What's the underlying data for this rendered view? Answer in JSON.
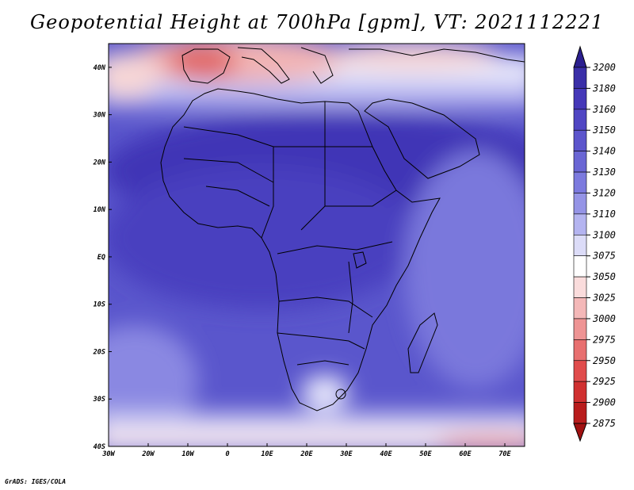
{
  "title": "Geopotential Height at 700hPa [gpm], VT: 2021112221",
  "credit": "GrADS: IGES/COLA",
  "map": {
    "lon_range": [
      -30,
      75
    ],
    "lat_range": [
      -40,
      45
    ],
    "lon_ticks": [
      {
        "value": -30,
        "label": "30W"
      },
      {
        "value": -20,
        "label": "20W"
      },
      {
        "value": -10,
        "label": "10W"
      },
      {
        "value": 0,
        "label": "0"
      },
      {
        "value": 10,
        "label": "10E"
      },
      {
        "value": 20,
        "label": "20E"
      },
      {
        "value": 30,
        "label": "30E"
      },
      {
        "value": 40,
        "label": "40E"
      },
      {
        "value": 50,
        "label": "50E"
      },
      {
        "value": 60,
        "label": "60E"
      },
      {
        "value": 70,
        "label": "70E"
      }
    ],
    "lat_ticks": [
      {
        "value": 40,
        "label": "40N"
      },
      {
        "value": 30,
        "label": "30N"
      },
      {
        "value": 20,
        "label": "20N"
      },
      {
        "value": 10,
        "label": "10N"
      },
      {
        "value": 0,
        "label": "EQ"
      },
      {
        "value": -10,
        "label": "10S"
      },
      {
        "value": -20,
        "label": "20S"
      },
      {
        "value": -30,
        "label": "30S"
      },
      {
        "value": -40,
        "label": "40S"
      }
    ]
  },
  "colorbar": {
    "levels": [
      "3200",
      "3180",
      "3160",
      "3150",
      "3140",
      "3130",
      "3120",
      "3110",
      "3100",
      "3075",
      "3050",
      "3025",
      "3000",
      "2975",
      "2950",
      "2925",
      "2900",
      "2875"
    ],
    "colors": [
      "#2b1f8f",
      "#3a2fa8",
      "#4538b8",
      "#5046c3",
      "#5c55cc",
      "#6a66d4",
      "#7c7ade",
      "#9594e6",
      "#b4b4f0",
      "#dcdcf8",
      "#ffffff",
      "#fadcdc",
      "#f4b8b8",
      "#ee9494",
      "#e87070",
      "#e04c4c",
      "#d03030",
      "#b81c1c",
      "#a01010"
    ],
    "top_color": "#2b1f8f",
    "bottom_color": "#a01010"
  }
}
